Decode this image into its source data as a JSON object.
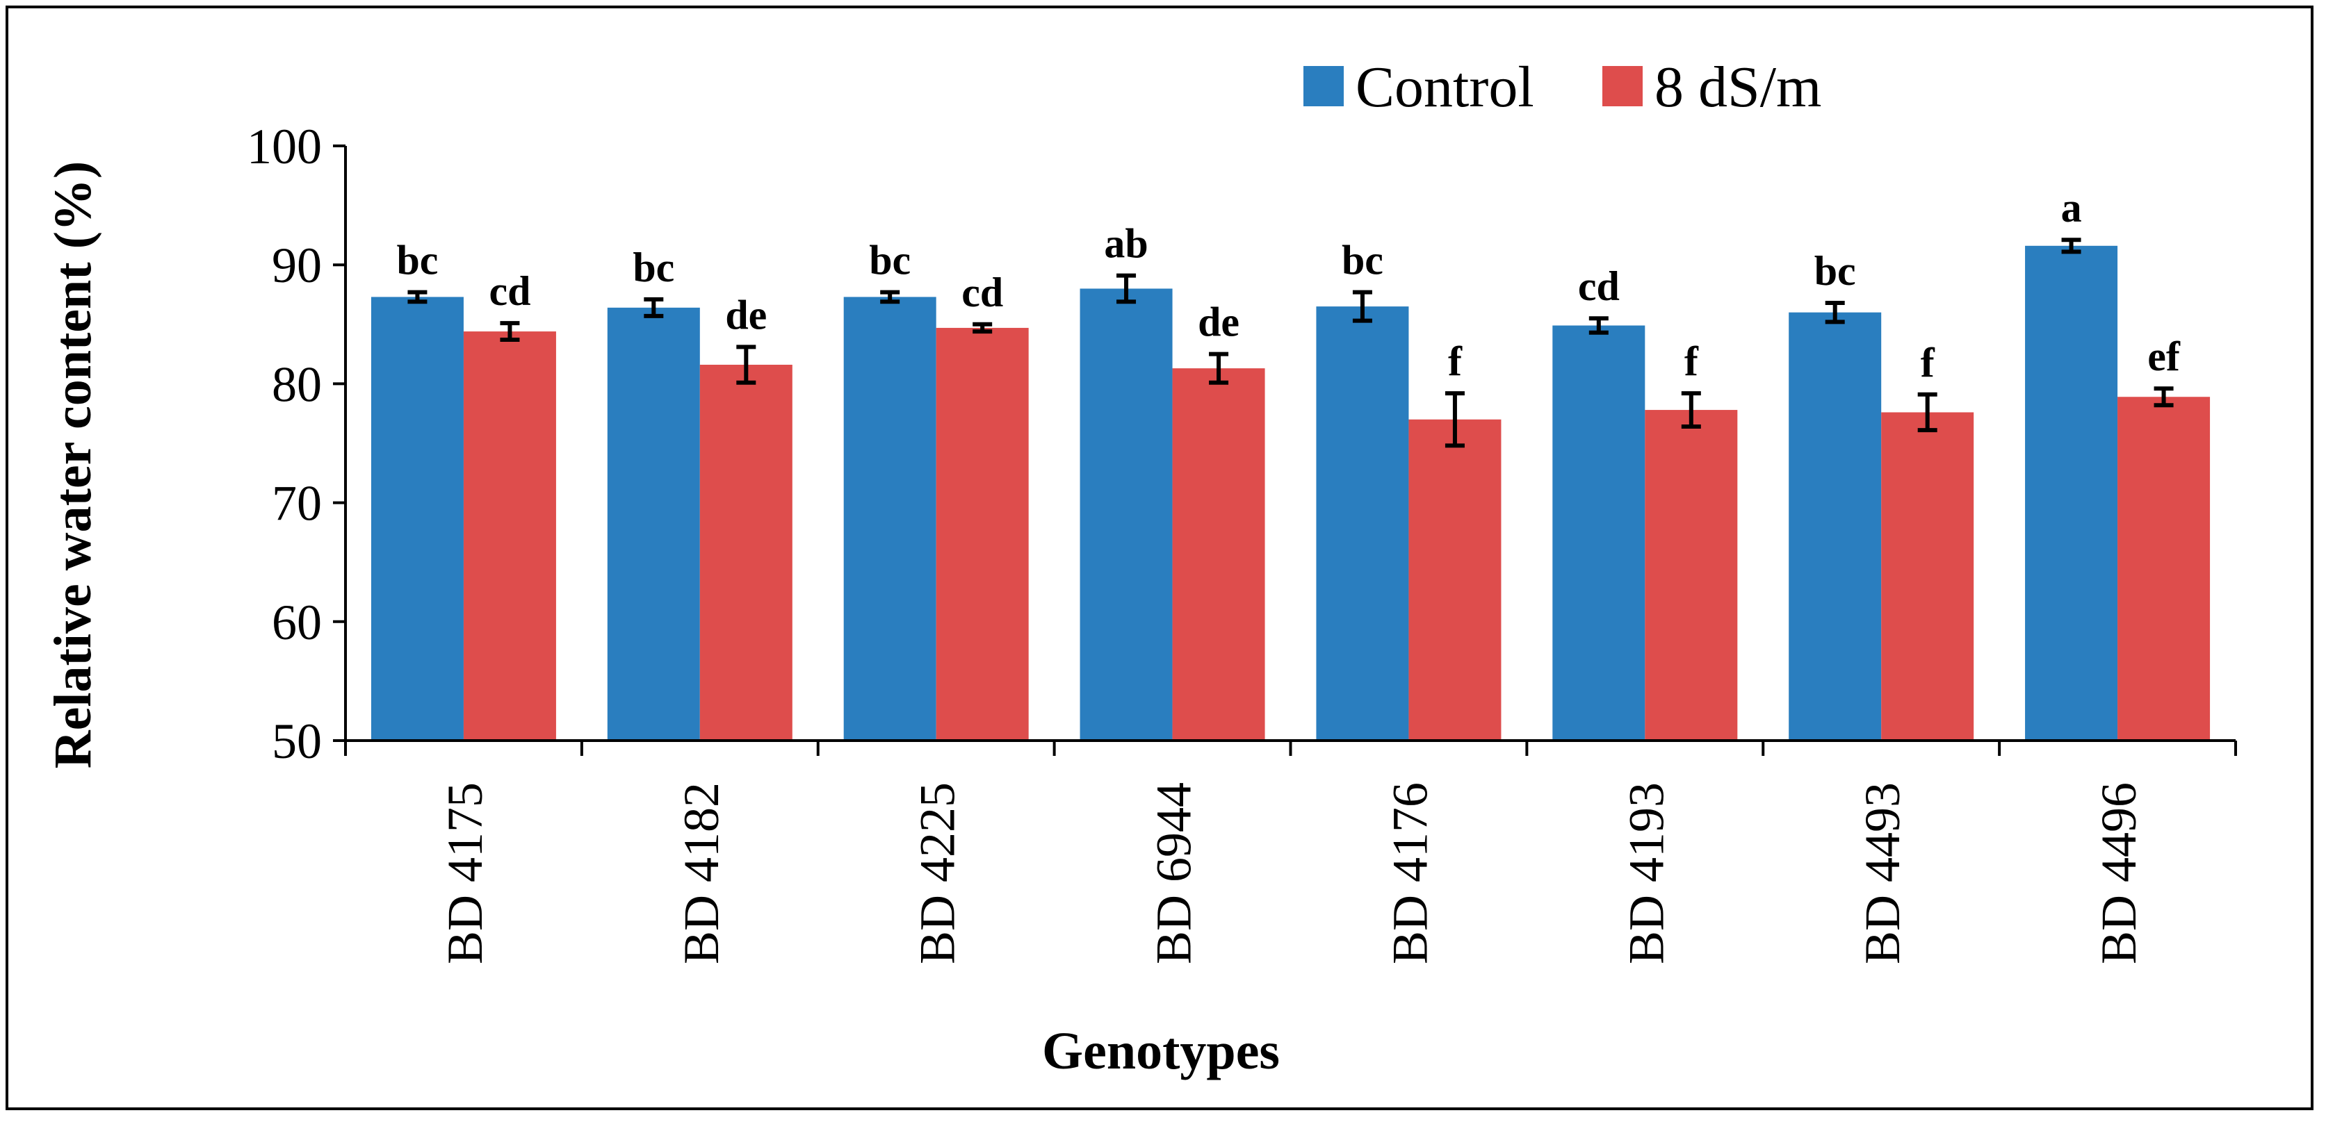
{
  "chart_data": {
    "type": "bar",
    "title": "",
    "xlabel": "Genotypes",
    "ylabel": "Relative water content (%)",
    "ylim": [
      50,
      100
    ],
    "yticks": [
      "50",
      "60",
      "70",
      "80",
      "90",
      "100"
    ],
    "grid": false,
    "legend_position": "top-right",
    "categories": [
      "BD 4175",
      "BD 4182",
      "BD 4225",
      "BD 6944",
      "BD 4176",
      "BD 4193",
      "BD 4493",
      "BD 4496"
    ],
    "series": [
      {
        "name": "Control",
        "color": "#2a7ebf",
        "values": [
          87.3,
          86.4,
          87.3,
          88.0,
          86.5,
          84.9,
          86.0,
          91.6
        ],
        "errors": [
          0.4,
          0.7,
          0.4,
          1.1,
          1.2,
          0.6,
          0.8,
          0.5
        ],
        "labels": [
          "bc",
          "bc",
          "bc",
          "ab",
          "bc",
          "cd",
          "bc",
          "a"
        ]
      },
      {
        "name": "8 dS/m",
        "color": "#de4d4c",
        "values": [
          84.4,
          81.6,
          84.7,
          81.3,
          77.0,
          77.8,
          77.6,
          78.9
        ],
        "errors": [
          0.7,
          1.5,
          0.3,
          1.2,
          2.2,
          1.4,
          1.5,
          0.7
        ],
        "labels": [
          "cd",
          "de",
          "cd",
          "de",
          "f",
          "f",
          "f",
          "ef"
        ]
      }
    ]
  }
}
